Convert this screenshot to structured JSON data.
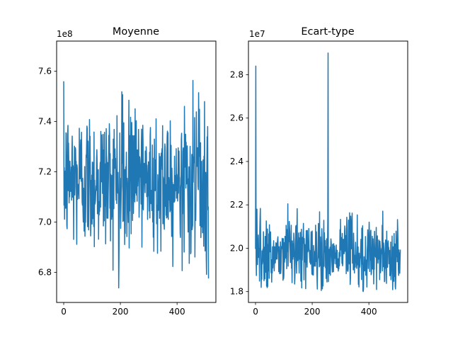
{
  "chart_data": [
    {
      "type": "line",
      "title": "Moyenne",
      "offset_label": "1e8",
      "xlim": [
        -25,
        537
      ],
      "ylim": [
        6.68,
        7.72
      ],
      "xticks": [
        0,
        200,
        400
      ],
      "xtick_labels": [
        "0",
        "200",
        "400"
      ],
      "yticks": [
        6.8,
        7.0,
        7.2,
        7.4,
        7.6
      ],
      "ytick_labels": [
        "6.8",
        "7.0",
        "7.2",
        "7.4",
        "7.6"
      ],
      "color": "#1f77b4",
      "n_points": 512,
      "value_range": [
        6.72,
        7.7
      ],
      "typical_range": [
        6.95,
        7.4
      ],
      "mean": 7.17
    },
    {
      "type": "line",
      "title": "Ecart-type",
      "offset_label": "1e7",
      "xlim": [
        -25,
        537
      ],
      "ylim": [
        1.75,
        2.955
      ],
      "xticks": [
        0,
        200,
        400
      ],
      "xtick_labels": [
        "0",
        "200",
        "400"
      ],
      "yticks": [
        1.8,
        2.0,
        2.2,
        2.4,
        2.6,
        2.8
      ],
      "ytick_labels": [
        "1.8",
        "2.0",
        "2.2",
        "2.4",
        "2.6",
        "2.8"
      ],
      "color": "#1f77b4",
      "n_points": 512,
      "value_range": [
        1.8,
        2.9
      ],
      "typical_range": [
        1.86,
        2.12
      ],
      "mean": 1.98,
      "spikes": [
        {
          "x": 1,
          "y": 2.84
        },
        {
          "x": 256,
          "y": 2.9
        }
      ]
    }
  ]
}
